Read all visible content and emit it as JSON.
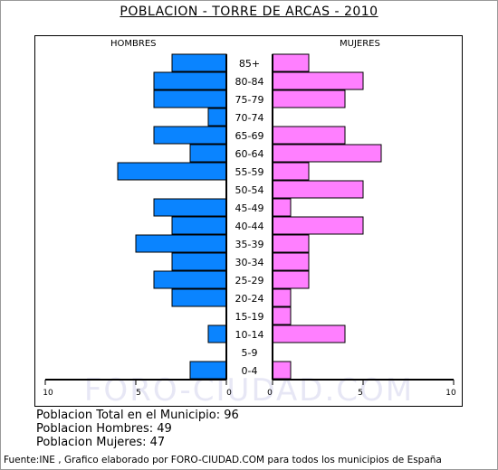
{
  "title": "POBLACION - TORRE DE ARCAS - 2010",
  "watermark": "FORO-CIUDAD.COM",
  "summary": {
    "total": "Poblacion Total en el Municipio: 96",
    "men": "Poblacion Hombres: 49",
    "women": "Poblacion Mujeres: 47"
  },
  "source": "Fuente:INE , Grafico elaborado por FORO-CIUDAD.COM para todos los municipios de España",
  "colors": {
    "men": "#0a84ff",
    "women": "#ff7fff",
    "outline": "#000000"
  },
  "chart_data": {
    "type": "bar",
    "subtype": "population-pyramid",
    "title": "POBLACION - TORRE DE ARCAS - 2010",
    "left_label": "HOMBRES",
    "right_label": "MUJERES",
    "categories": [
      "85+",
      "80-84",
      "75-79",
      "70-74",
      "65-69",
      "60-64",
      "55-59",
      "50-54",
      "45-49",
      "40-44",
      "35-39",
      "30-34",
      "25-29",
      "20-24",
      "15-19",
      "10-14",
      "5-9",
      "0-4"
    ],
    "series": [
      {
        "name": "HOMBRES",
        "values": [
          3,
          4,
          4,
          1,
          4,
          2,
          6,
          0,
          4,
          3,
          5,
          3,
          4,
          3,
          0,
          1,
          0,
          2
        ]
      },
      {
        "name": "MUJERES",
        "values": [
          2,
          5,
          4,
          0,
          4,
          6,
          2,
          5,
          1,
          5,
          2,
          2,
          2,
          1,
          1,
          4,
          0,
          1
        ]
      }
    ],
    "x_ticks_left": [
      "10",
      "5",
      "0"
    ],
    "x_ticks_right": [
      "0",
      "5",
      "10"
    ],
    "xlim": [
      0,
      10
    ]
  }
}
